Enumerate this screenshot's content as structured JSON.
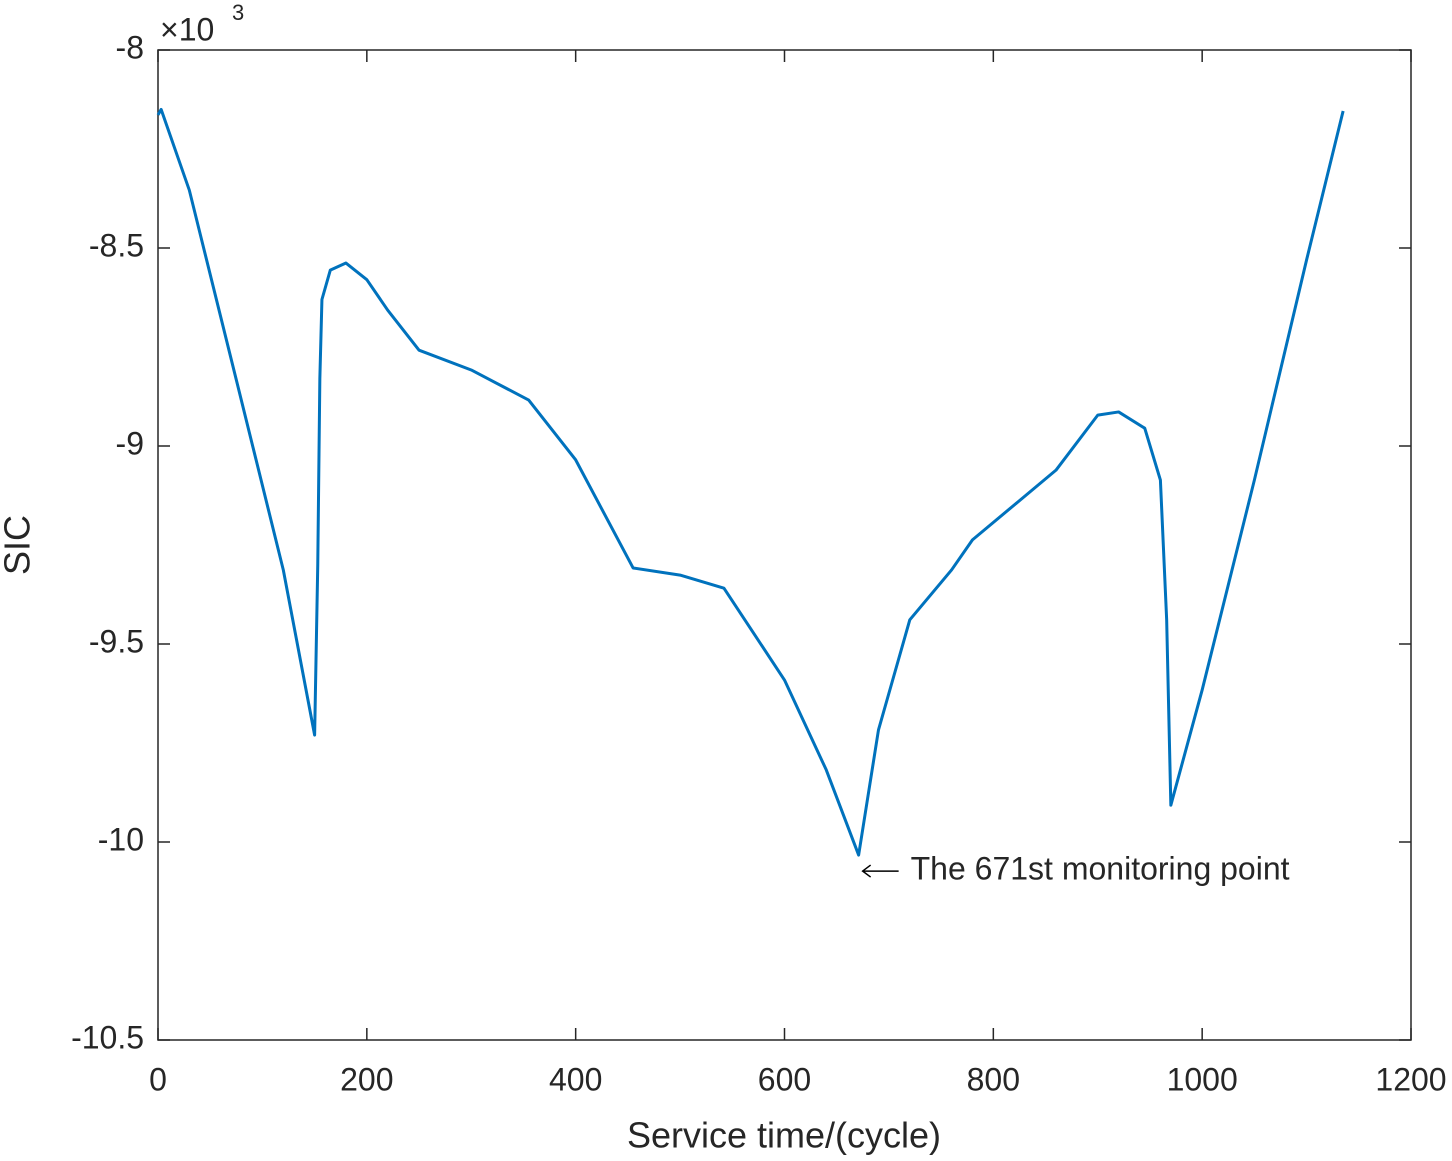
{
  "chart_data": {
    "type": "line",
    "x_label": "Service time/(cycle)",
    "y_label": "SIC",
    "y_exponent": {
      "base": "×10",
      "power": "3"
    },
    "annotation": "The 671st monitoring point",
    "x": [
      0,
      3,
      30,
      75,
      120,
      150,
      153,
      155,
      157,
      165,
      180,
      200,
      220,
      250,
      300,
      355,
      400,
      455,
      500,
      542,
      600,
      640,
      671,
      690,
      720,
      760,
      780,
      860,
      900,
      920,
      945,
      960,
      966,
      970,
      1000,
      1050,
      1100,
      1135
    ],
    "series": [
      {
        "name": "SIC",
        "color": "#0072bd",
        "values": [
          -8.164,
          -8.15,
          -8.354,
          -8.833,
          -9.313,
          -9.73,
          -9.3,
          -8.83,
          -8.63,
          -8.556,
          -8.538,
          -8.58,
          -8.657,
          -8.758,
          -8.808,
          -8.884,
          -9.035,
          -9.308,
          -9.326,
          -9.359,
          -9.591,
          -9.818,
          -10.033,
          -9.717,
          -9.439,
          -9.313,
          -9.237,
          -9.061,
          -8.922,
          -8.914,
          -8.955,
          -9.086,
          -9.439,
          -9.907,
          -9.616,
          -9.086,
          -8.53,
          -8.154
        ]
      }
    ],
    "xlim": [
      0,
      1200
    ],
    "xticks": [
      0,
      200,
      400,
      600,
      800,
      1000,
      1200
    ],
    "ylim": [
      -10.5,
      -8
    ],
    "yticks": [
      -10.5,
      -10,
      -9.5,
      -9,
      -8.5,
      -8
    ],
    "grid": false
  }
}
